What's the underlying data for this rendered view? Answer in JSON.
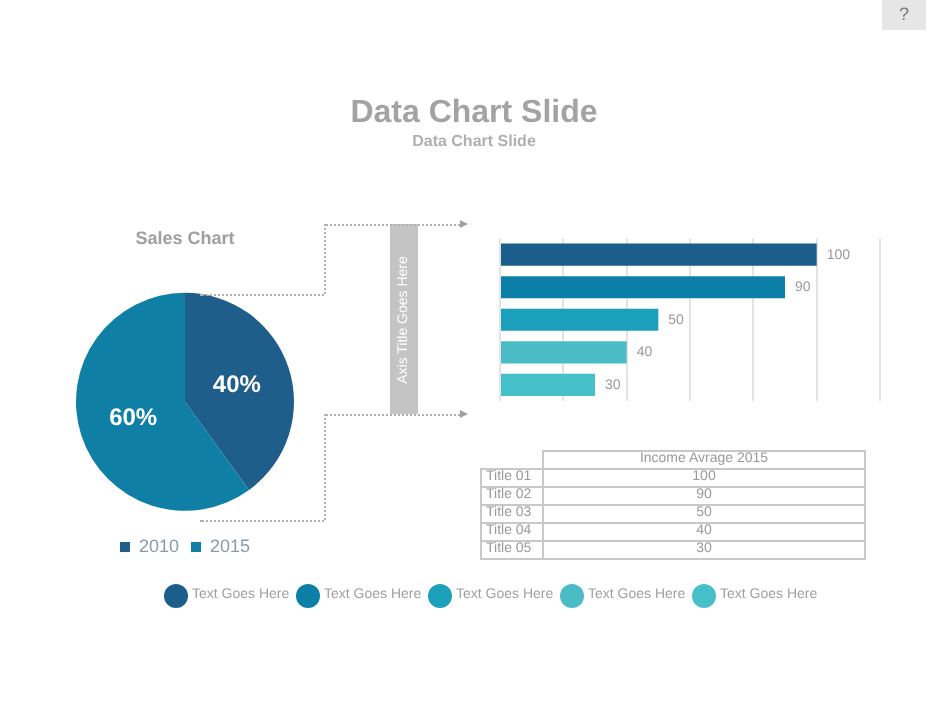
{
  "chart_data": [
    {
      "type": "other",
      "title": "Data Chart Slide",
      "subtitle": "Data Chart Slide",
      "annotations": [
        "?"
      ]
    },
    {
      "type": "pie",
      "title": "Sales Chart",
      "categories": [
        "2010",
        "2015"
      ],
      "values": [
        40,
        60
      ],
      "colors": [
        "#1f5d8a",
        "#0f7fa6"
      ],
      "value_labels": [
        "40%",
        "60%"
      ],
      "legend": "bottom"
    },
    {
      "type": "bar",
      "orientation": "horizontal",
      "ylabel": "Axis Title Goes Here",
      "categories": [
        null,
        null,
        null,
        null,
        null
      ],
      "values": [
        100,
        90,
        50,
        40,
        30
      ],
      "colors": [
        "#1b5e8c",
        "#0b7fa8",
        "#1aa0bb",
        "#4bbcc6",
        "#45c0c9"
      ],
      "xlim": [
        0,
        120
      ],
      "xticks": [
        {
          "value": 0,
          "label": null
        },
        {
          "value": 20,
          "label": null
        },
        {
          "value": 40,
          "label": null
        },
        {
          "value": 60,
          "label": null
        },
        {
          "value": 80,
          "label": null
        },
        {
          "value": 100,
          "label": null
        },
        {
          "value": 120,
          "label": null
        }
      ],
      "grid": "x",
      "data_labels": true,
      "annotations": [
        "Income Avrage 2015",
        "Title 01",
        "Title 02",
        "Title 03",
        "Title 04",
        "Title 05",
        "100",
        "90",
        "50",
        "40",
        "30",
        "Text Goes Here",
        "Text Goes Here",
        "Text Goes Here",
        "Text Goes Here",
        "Text Goes Here"
      ]
    }
  ]
}
